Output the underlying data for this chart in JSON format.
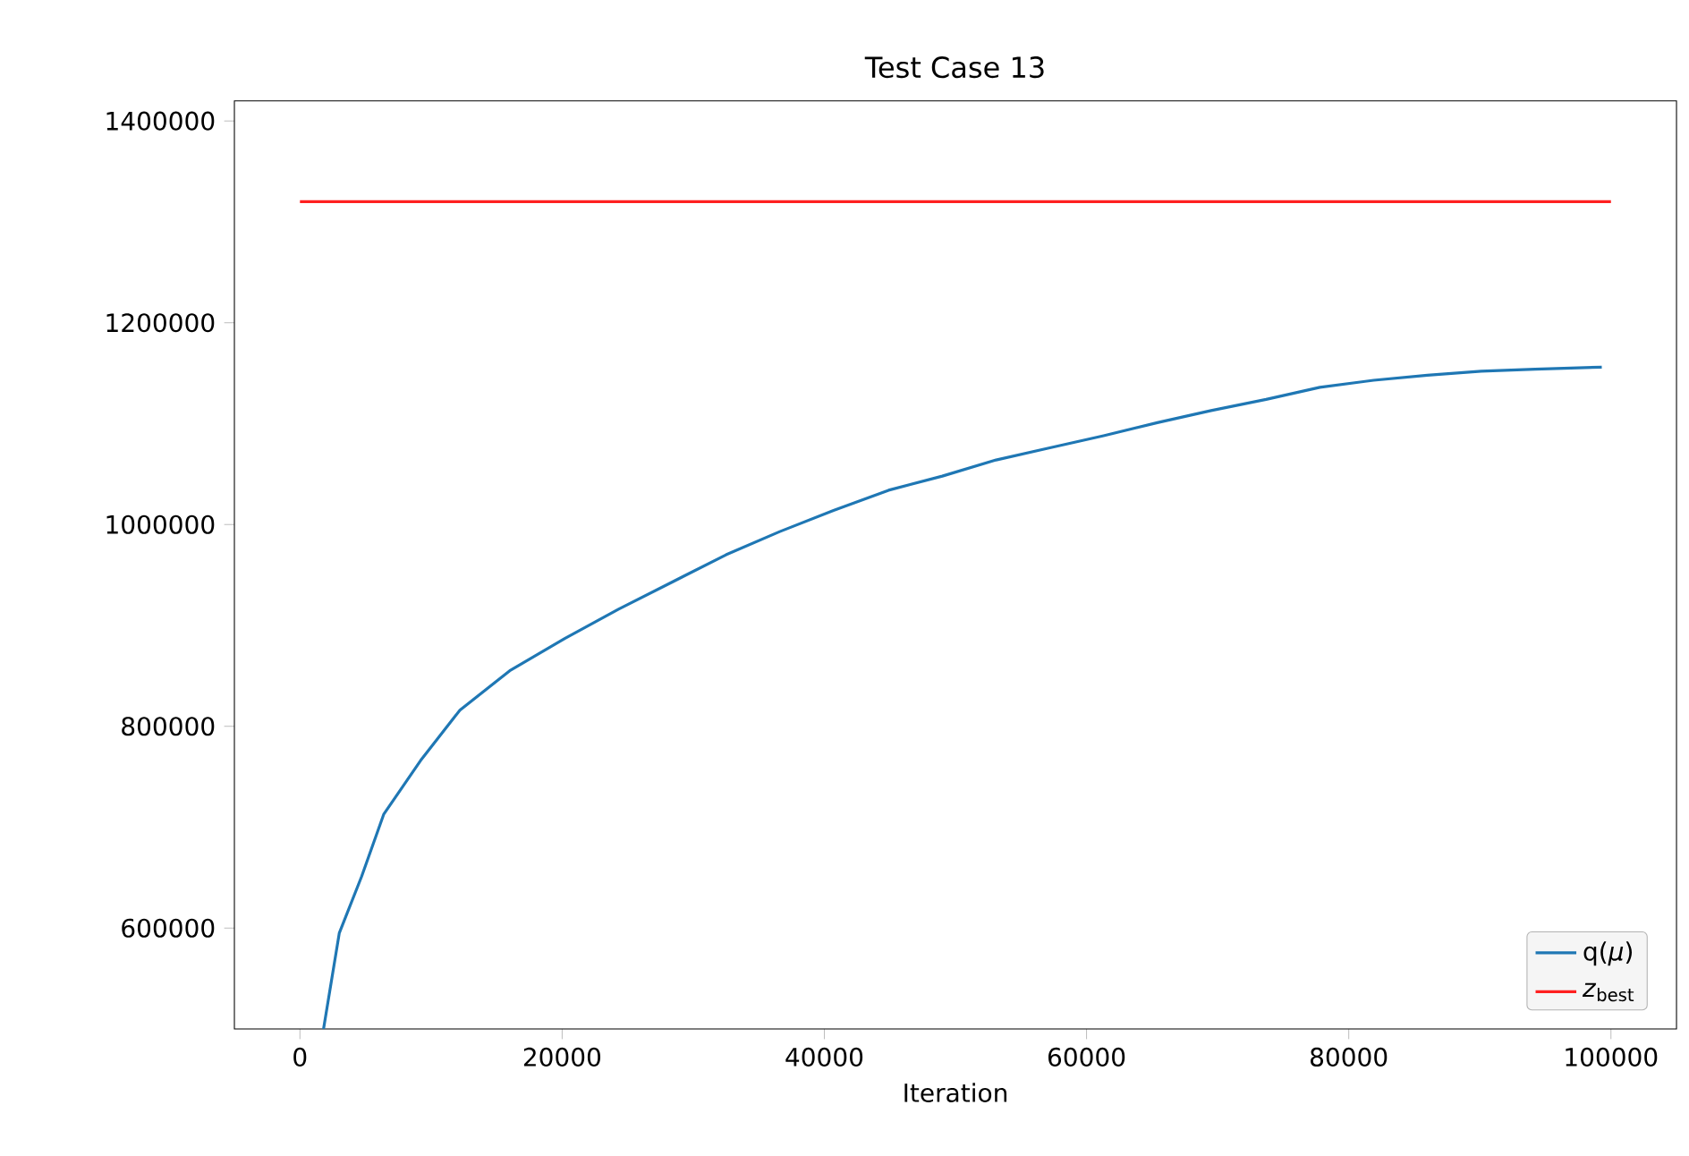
{
  "chart_data": {
    "type": "line",
    "title": "Test Case 13",
    "xlabel": "Iteration",
    "xlim": [
      -5000,
      105000
    ],
    "ylim": [
      500000,
      1420000
    ],
    "xticks": [
      0,
      20000,
      40000,
      60000,
      80000,
      100000
    ],
    "yticks": [
      600000,
      800000,
      1000000,
      1200000,
      1400000
    ],
    "grid": false,
    "legend": "bottom right",
    "marker": "none",
    "line_style": "solid",
    "series": [
      {
        "name": "q(*μ*)",
        "color": "#1f77b4",
        "x": [
          1800,
          3000,
          4700,
          6400,
          9200,
          12200,
          16000,
          20200,
          24300,
          28400,
          32500,
          36600,
          40700,
          44900,
          49000,
          53100,
          57200,
          61300,
          65400,
          69500,
          73700,
          77800,
          81900,
          86000,
          90100,
          94200,
          99300
        ],
        "values": [
          500000,
          595000,
          651000,
          713000,
          766000,
          816000,
          855000,
          887000,
          916000,
          943000,
          970000,
          993000,
          1014000,
          1034000,
          1048000,
          1064000,
          1076000,
          1088000,
          1101000,
          1113000,
          1124000,
          1136000,
          1143000,
          1148000,
          1152000,
          1154000,
          1156000
        ]
      },
      {
        "name": "*z*$_{best}$",
        "color": "#ff2020",
        "x": [
          0,
          100000
        ],
        "values": [
          1320000,
          1320000
        ]
      }
    ]
  }
}
